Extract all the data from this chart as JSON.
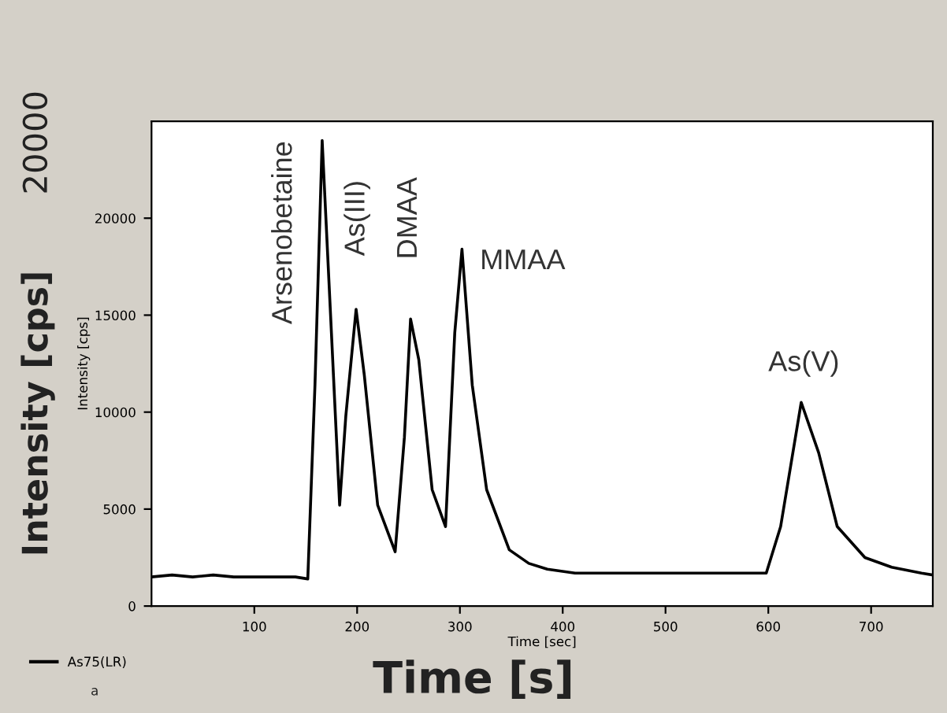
{
  "chart_data": {
    "type": "line",
    "xlabel": "Time [sec]",
    "ylabel": "Intensity [cps]",
    "xlim": [
      0,
      760
    ],
    "ylim": [
      0,
      25000
    ],
    "xticks": [
      100,
      200,
      300,
      400,
      500,
      600,
      700
    ],
    "yticks": [
      0,
      5000,
      10000,
      15000,
      20000
    ],
    "grid": false,
    "legend": "bottom left",
    "marker": "none",
    "line_style": "solid",
    "series": [
      {
        "name": "As75(LR)",
        "color": "#000000",
        "x": [
          0,
          20,
          40,
          60,
          80,
          100,
          120,
          140,
          152,
          159,
          166,
          175,
          183,
          189,
          199,
          207,
          220,
          237,
          246,
          252,
          260,
          273,
          286,
          295,
          302,
          312,
          326,
          348,
          367,
          385,
          412,
          450,
          503,
          550,
          598,
          612,
          632,
          649,
          667,
          694,
          720,
          749,
          760
        ],
        "values": [
          1500,
          1600,
          1500,
          1600,
          1500,
          1500,
          1500,
          1500,
          1400,
          11400,
          24000,
          14100,
          5200,
          9800,
          15300,
          11900,
          5200,
          2800,
          8700,
          14800,
          12700,
          6000,
          4100,
          14100,
          18400,
          11400,
          6000,
          2900,
          2200,
          1900,
          1700,
          1700,
          1700,
          1700,
          1700,
          4100,
          10500,
          7900,
          4100,
          2500,
          2000,
          1700,
          1600
        ]
      }
    ],
    "annotations": [
      "Arsenobetaine",
      "As(III)",
      "DMAA",
      "MMAA",
      "As(V)",
      "20000",
      "Intensity [cps]",
      "Time [s]",
      "a"
    ]
  }
}
